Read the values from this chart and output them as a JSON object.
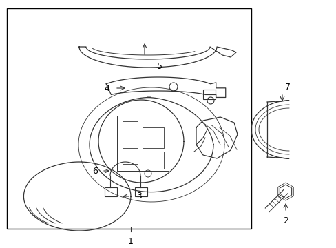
{
  "bg_color": "#ffffff",
  "line_color": "#333333",
  "box_color": "#000000",
  "label_color": "#000000",
  "figsize": [
    4.89,
    3.6
  ],
  "dpi": 100,
  "font_size": 9
}
